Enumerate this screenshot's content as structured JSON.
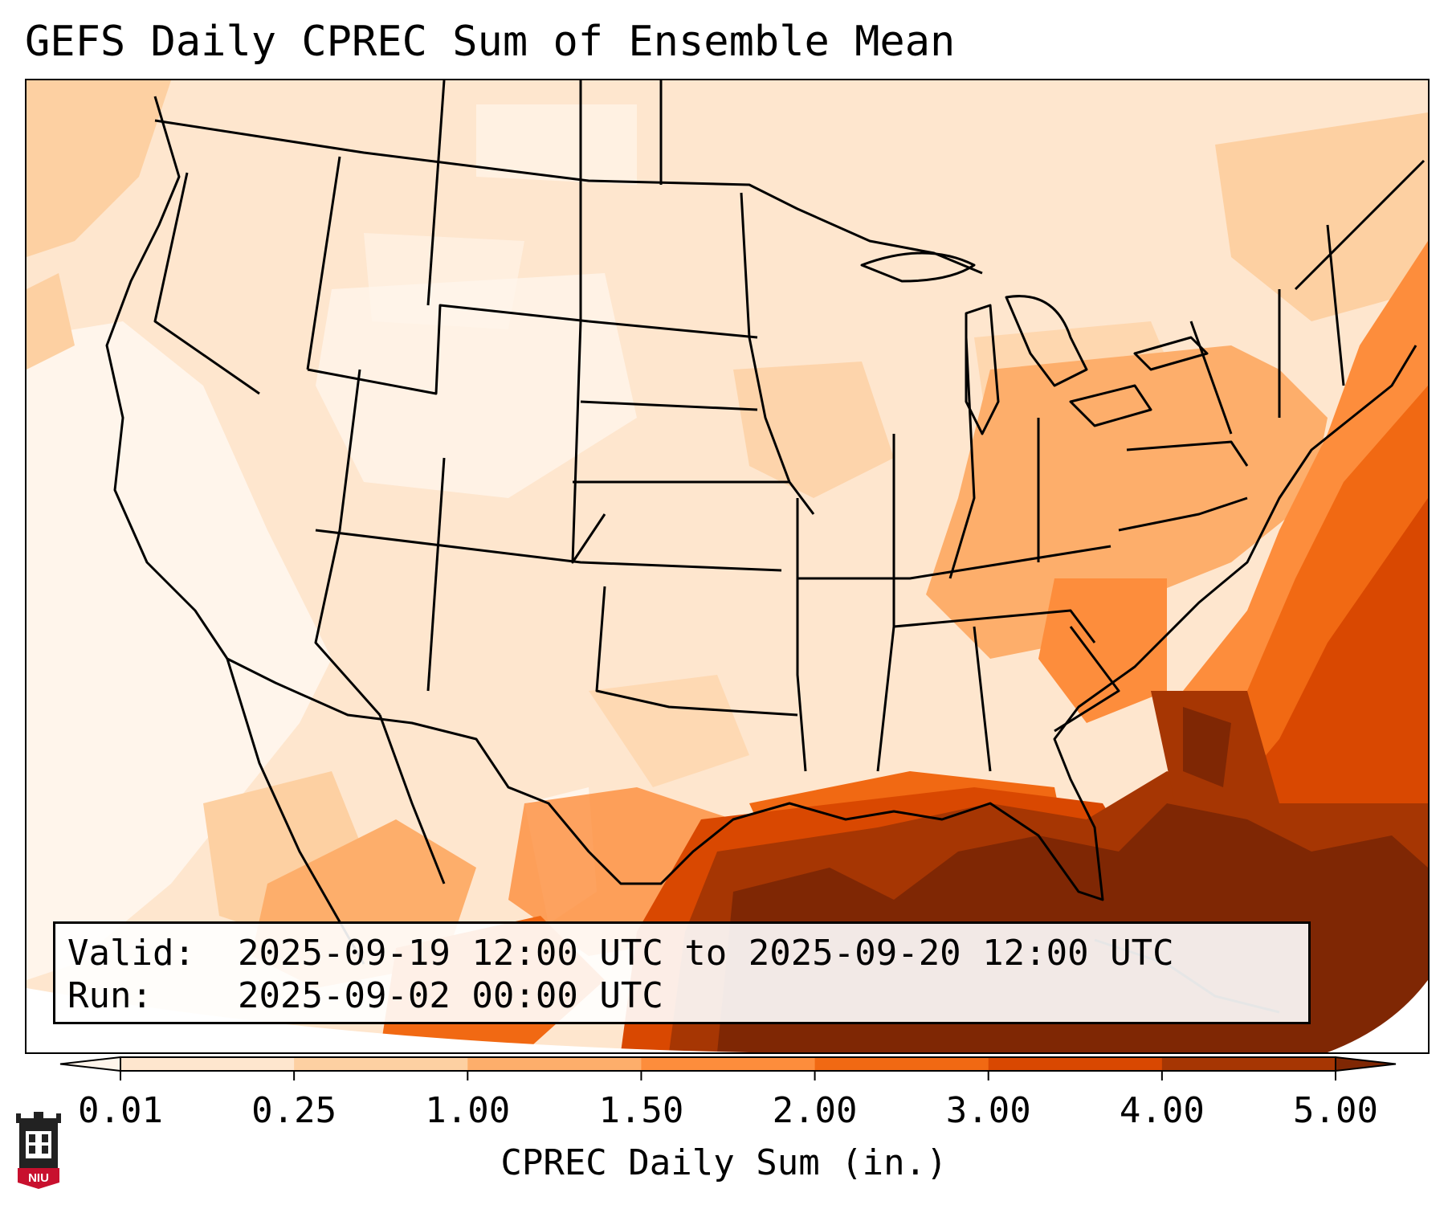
{
  "title": "GEFS Daily CPREC Sum of Ensemble Mean",
  "info_box": {
    "valid_label": "Valid:",
    "valid_value": "2025-09-19 12:00 UTC to 2025-09-20 12:00 UTC",
    "run_label": "Run:",
    "run_value": "2025-09-02 00:00 UTC"
  },
  "colorbar": {
    "label": "CPREC Daily Sum (in.)",
    "ticks": [
      "0.01",
      "0.25",
      "1.00",
      "1.50",
      "2.00",
      "3.00",
      "4.00",
      "5.00"
    ],
    "levels": [
      0.01,
      0.25,
      1.0,
      1.5,
      2.0,
      3.0,
      4.0,
      5.0
    ],
    "colors": [
      "#fff5eb",
      "#fee6ce",
      "#fdd0a2",
      "#fdae6b",
      "#fd8d3c",
      "#f16913",
      "#d94801",
      "#a63603",
      "#7f2704"
    ],
    "extend": "both"
  },
  "map": {
    "region": "Contiguous United States",
    "field": "CPREC daily sum",
    "features": [
      "state-borders",
      "coastlines",
      "great-lakes"
    ]
  },
  "logo": {
    "text": "NIU",
    "icon": "university-tower-logo"
  }
}
